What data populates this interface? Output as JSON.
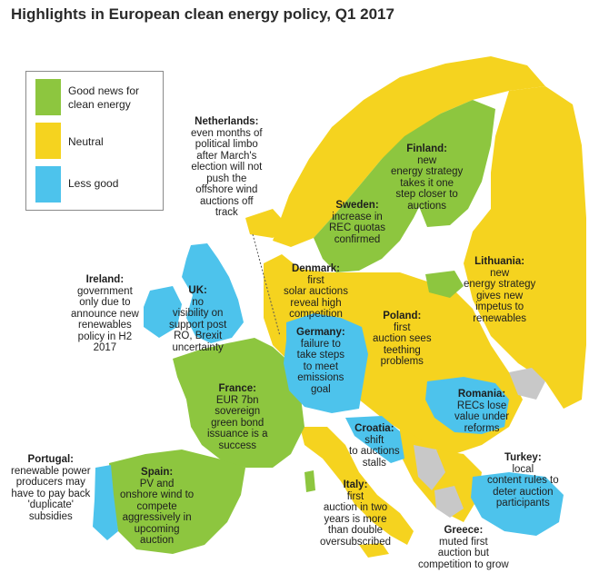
{
  "title": "Highlights in European clean energy policy, Q1 2017",
  "colors": {
    "good": "#8dc63f",
    "neutral": "#f5d31f",
    "less": "#4dc3ec",
    "other": "#c8c8c8",
    "sea": "#ffffff"
  },
  "legend": [
    {
      "key": "good",
      "label": "Good news for clean energy"
    },
    {
      "key": "neutral",
      "label": "Neutral"
    },
    {
      "key": "less",
      "label": "Less good"
    }
  ],
  "annotations": [
    {
      "id": "netherlands",
      "heading": "Netherlands:",
      "text": "even months of\npolitical limbo\nafter March's\nelection will not\npush the\noffshore wind\nauctions off\ntrack"
    },
    {
      "id": "finland",
      "heading": "Finland:",
      "text": "new\nenergy strategy\ntakes it one\nstep closer to\nauctions"
    },
    {
      "id": "sweden",
      "heading": "Sweden:",
      "text": "increase in\nREC quotas\nconfirmed"
    },
    {
      "id": "lithuania",
      "heading": "Lithuania:",
      "text": "new\nenergy strategy\ngives new\nimpetus to\nrenewables"
    },
    {
      "id": "denmark",
      "heading": "Denmark:",
      "text": "first\nsolar auctions\nreveal high\ncompetition"
    },
    {
      "id": "ireland",
      "heading": "Ireland:",
      "text": "government\nonly due to\nannounce new\nrenewables\npolicy in H2\n2017"
    },
    {
      "id": "uk",
      "heading": "UK:",
      "text": "no\nvisibility on\nsupport post\nRO, Brexit\nuncertainty"
    },
    {
      "id": "poland",
      "heading": "Poland:",
      "text": "first\nauction sees\nteething\nproblems"
    },
    {
      "id": "germany",
      "heading": "Germany:",
      "text": "failure to\ntake steps\nto meet\nemissions\ngoal"
    },
    {
      "id": "france",
      "heading": "France:",
      "text": "EUR 7bn\nsovereign\ngreen bond\nissuance is a\nsuccess"
    },
    {
      "id": "romania",
      "heading": "Romania:",
      "text": "RECs lose\nvalue under\nreforms"
    },
    {
      "id": "croatia",
      "heading": "Croatia:",
      "text": "shift\nto auctions\nstalls"
    },
    {
      "id": "portugal",
      "heading": "Portugal:",
      "text": "renewable power\nproducers may\nhave to pay back\n'duplicate'\nsubsidies"
    },
    {
      "id": "spain",
      "heading": "Spain:",
      "text": "PV and\nonshore wind to\ncompete\naggressively in\nupcoming\nauction"
    },
    {
      "id": "turkey",
      "heading": "Turkey:",
      "text": "local\ncontent rules to\ndeter auction\nparticipants"
    },
    {
      "id": "italy",
      "heading": "Italy:",
      "text": "first\nauction in two\nyears is more\nthan double\noversubscribed"
    },
    {
      "id": "greece",
      "heading": "Greece:",
      "text": "muted first\nauction but\ncompetition to grow"
    }
  ]
}
